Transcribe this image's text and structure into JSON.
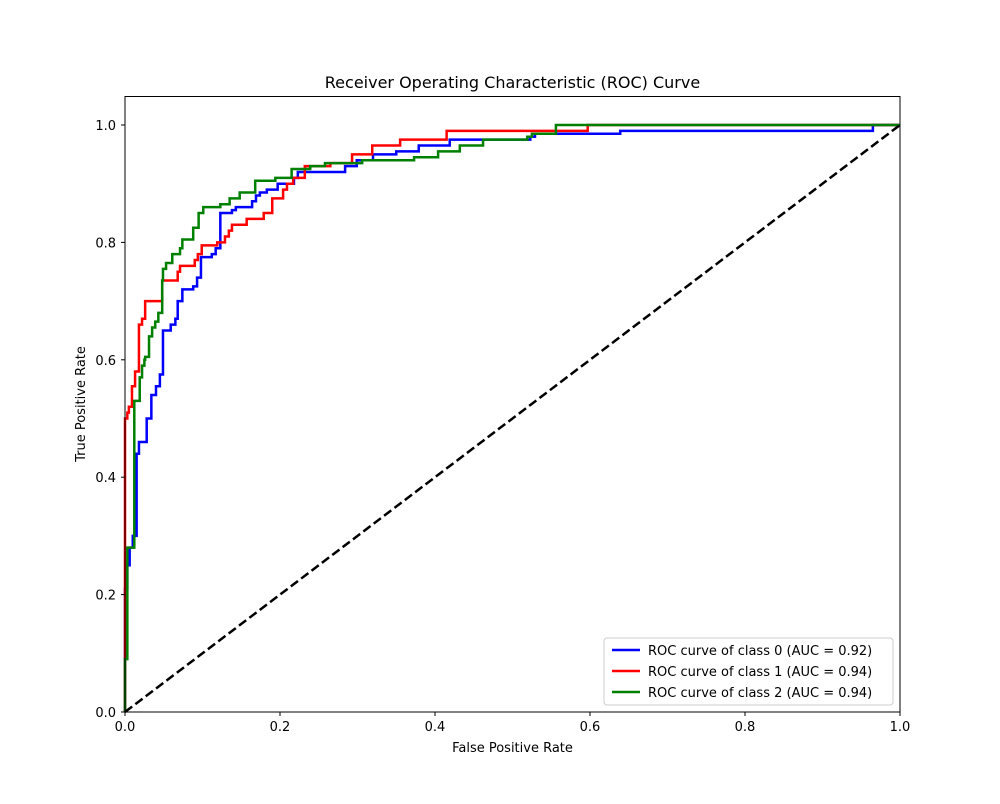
{
  "chart_data": {
    "type": "line",
    "title": "Receiver Operating Characteristic (ROC) Curve",
    "xlabel": "False Positive Rate",
    "ylabel": "True Positive Rate",
    "xlim": [
      0,
      1.0
    ],
    "ylim": [
      0,
      1.05
    ],
    "xticks": [
      "0.0",
      "0.2",
      "0.4",
      "0.6",
      "0.8",
      "1.0"
    ],
    "yticks": [
      "0.0",
      "0.2",
      "0.4",
      "0.6",
      "0.8",
      "1.0"
    ],
    "grid": false,
    "legend_position": "lower right",
    "series": [
      {
        "name": "ROC curve of class 0 (AUC = 0.92)",
        "color": "#0000ff",
        "steps": [
          [
            0,
            0.21
          ],
          [
            0.003,
            0.25
          ],
          [
            0.006,
            0.28
          ],
          [
            0.01,
            0.3
          ],
          [
            0.015,
            0.44
          ],
          [
            0.018,
            0.46
          ],
          [
            0.028,
            0.5
          ],
          [
            0.034,
            0.54
          ],
          [
            0.04,
            0.555
          ],
          [
            0.045,
            0.575
          ],
          [
            0.049,
            0.65
          ],
          [
            0.059,
            0.66
          ],
          [
            0.065,
            0.67
          ],
          [
            0.068,
            0.7
          ],
          [
            0.074,
            0.72
          ],
          [
            0.088,
            0.725
          ],
          [
            0.093,
            0.74
          ],
          [
            0.098,
            0.775
          ],
          [
            0.112,
            0.78
          ],
          [
            0.117,
            0.79
          ],
          [
            0.123,
            0.85
          ],
          [
            0.138,
            0.855
          ],
          [
            0.143,
            0.86
          ],
          [
            0.164,
            0.87
          ],
          [
            0.169,
            0.88
          ],
          [
            0.174,
            0.885
          ],
          [
            0.183,
            0.89
          ],
          [
            0.197,
            0.9
          ],
          [
            0.218,
            0.91
          ],
          [
            0.223,
            0.92
          ],
          [
            0.284,
            0.93
          ],
          [
            0.299,
            0.94
          ],
          [
            0.32,
            0.95
          ],
          [
            0.35,
            0.955
          ],
          [
            0.379,
            0.965
          ],
          [
            0.419,
            0.975
          ],
          [
            0.523,
            0.98
          ],
          [
            0.529,
            0.985
          ],
          [
            0.639,
            0.99
          ],
          [
            0.965,
            1.0
          ],
          [
            1.0,
            1.0
          ]
        ]
      },
      {
        "name": "ROC curve of class 1 (AUC = 0.94)",
        "color": "#ff0000",
        "steps": [
          [
            0,
            0.5
          ],
          [
            0.003,
            0.51
          ],
          [
            0.005,
            0.52
          ],
          [
            0.009,
            0.555
          ],
          [
            0.013,
            0.58
          ],
          [
            0.018,
            0.66
          ],
          [
            0.022,
            0.67
          ],
          [
            0.026,
            0.7
          ],
          [
            0.048,
            0.735
          ],
          [
            0.068,
            0.75
          ],
          [
            0.071,
            0.76
          ],
          [
            0.09,
            0.77
          ],
          [
            0.094,
            0.78
          ],
          [
            0.099,
            0.795
          ],
          [
            0.119,
            0.8
          ],
          [
            0.129,
            0.81
          ],
          [
            0.134,
            0.82
          ],
          [
            0.138,
            0.83
          ],
          [
            0.157,
            0.84
          ],
          [
            0.179,
            0.85
          ],
          [
            0.19,
            0.875
          ],
          [
            0.204,
            0.89
          ],
          [
            0.209,
            0.9
          ],
          [
            0.217,
            0.91
          ],
          [
            0.232,
            0.93
          ],
          [
            0.265,
            0.935
          ],
          [
            0.293,
            0.95
          ],
          [
            0.319,
            0.965
          ],
          [
            0.355,
            0.975
          ],
          [
            0.415,
            0.99
          ],
          [
            0.597,
            1.0
          ],
          [
            1.0,
            1.0
          ]
        ]
      },
      {
        "name": "ROC curve of class 2 (AUC = 0.94)",
        "color": "#008000",
        "steps": [
          [
            0,
            0.09
          ],
          [
            0.003,
            0.28
          ],
          [
            0.012,
            0.53
          ],
          [
            0.019,
            0.57
          ],
          [
            0.022,
            0.59
          ],
          [
            0.025,
            0.6
          ],
          [
            0.026,
            0.605
          ],
          [
            0.031,
            0.64
          ],
          [
            0.035,
            0.655
          ],
          [
            0.039,
            0.665
          ],
          [
            0.043,
            0.68
          ],
          [
            0.048,
            0.735
          ],
          [
            0.049,
            0.755
          ],
          [
            0.053,
            0.765
          ],
          [
            0.061,
            0.78
          ],
          [
            0.071,
            0.79
          ],
          [
            0.074,
            0.805
          ],
          [
            0.088,
            0.825
          ],
          [
            0.095,
            0.85
          ],
          [
            0.101,
            0.86
          ],
          [
            0.123,
            0.865
          ],
          [
            0.135,
            0.875
          ],
          [
            0.148,
            0.885
          ],
          [
            0.168,
            0.905
          ],
          [
            0.194,
            0.91
          ],
          [
            0.215,
            0.925
          ],
          [
            0.239,
            0.93
          ],
          [
            0.258,
            0.935
          ],
          [
            0.306,
            0.94
          ],
          [
            0.373,
            0.945
          ],
          [
            0.404,
            0.955
          ],
          [
            0.432,
            0.965
          ],
          [
            0.462,
            0.975
          ],
          [
            0.519,
            0.98
          ],
          [
            0.525,
            0.985
          ],
          [
            0.556,
            1.0
          ],
          [
            1.0,
            1.0
          ]
        ]
      }
    ],
    "reference_line": {
      "x": [
        0,
        1
      ],
      "y": [
        0,
        1
      ],
      "color": "#000000",
      "style": "dashed"
    }
  }
}
